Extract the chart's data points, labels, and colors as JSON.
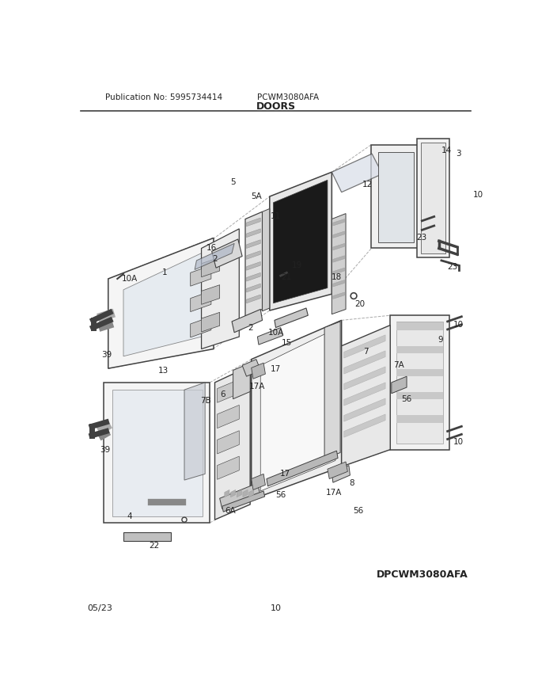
{
  "title": "DOORS",
  "pub_no": "Publication No: 5995734414",
  "model": "PCWM3080AFA",
  "diagram_code": "DPCWM3080AFA",
  "date": "05/23",
  "page": "10",
  "background_color": "#ffffff",
  "line_color": "#404040",
  "label_color": "#222222",
  "fig_width": 6.8,
  "fig_height": 8.8,
  "dpi": 100
}
